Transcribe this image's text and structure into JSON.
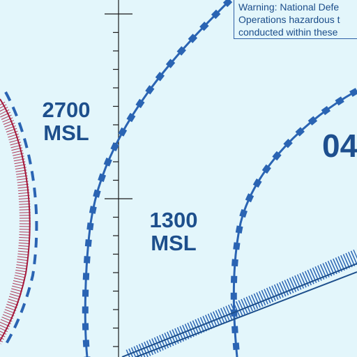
{
  "labels": {
    "alt_left": [
      "2700",
      "MSL"
    ],
    "alt_right": [
      "1300",
      "MSL"
    ],
    "partial_number": "04"
  },
  "warning": {
    "lines": [
      "Warning: National Defe",
      "Operations hazardous t",
      "conducted within these"
    ]
  },
  "colors": {
    "background": "#e3f6fb",
    "airspace_blue": "#2a64b3",
    "text_blue": "#1d4f8c",
    "restricted_red": "#a6183a",
    "meridian": "#1a1a1a"
  }
}
